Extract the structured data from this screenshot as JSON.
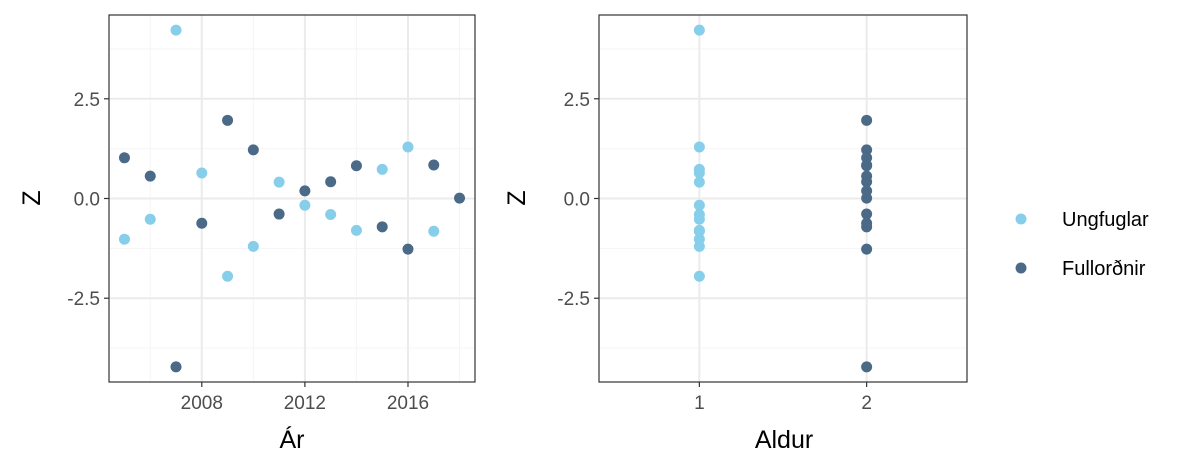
{
  "colors": {
    "series": [
      "#87ceeb",
      "#4a6a87"
    ],
    "grid_major": "#ebebeb",
    "grid_minor": "#f5f5f5",
    "panel_border": "#333333",
    "tick_text": "#4d4d4d"
  },
  "legend": {
    "position": "right",
    "items": [
      {
        "label": "Ungfuglar"
      },
      {
        "label": "Fullorðnir"
      }
    ]
  },
  "chart_data": [
    {
      "type": "scatter",
      "xlabel": "Ár",
      "ylabel": "Z",
      "xlim": [
        2004.4,
        2018.6
      ],
      "ylim": [
        -4.6,
        4.6
      ],
      "xticks": [
        {
          "value": 2008,
          "label": "2008"
        },
        {
          "value": 2012,
          "label": "2012"
        },
        {
          "value": 2016,
          "label": "2016"
        }
      ],
      "yticks": [
        {
          "value": -2.5,
          "label": "-2.5"
        },
        {
          "value": 0,
          "label": "0.0"
        },
        {
          "value": 2.5,
          "label": "2.5"
        }
      ],
      "x_minor": [
        2006,
        2010,
        2014,
        2018
      ],
      "y_minor": [
        -3.75,
        -1.25,
        1.25,
        3.75
      ],
      "grid": true,
      "series": [
        {
          "name": "Ungfuglar",
          "x": [
            2005,
            2006,
            2007,
            2008,
            2009,
            2010,
            2011,
            2012,
            2013,
            2014,
            2015,
            2016,
            2017
          ],
          "y": [
            -1.02,
            -0.52,
            4.22,
            0.64,
            -1.95,
            -1.2,
            0.41,
            -0.17,
            -0.4,
            -0.8,
            0.73,
            1.29,
            -0.82
          ]
        },
        {
          "name": "Fullorðnir",
          "x": [
            2005,
            2006,
            2007,
            2008,
            2009,
            2010,
            2011,
            2012,
            2013,
            2014,
            2015,
            2016,
            2017,
            2018
          ],
          "y": [
            1.02,
            0.56,
            -4.22,
            -0.62,
            1.96,
            1.22,
            -0.39,
            0.19,
            0.42,
            0.82,
            -0.71,
            -1.27,
            0.84,
            0.01
          ]
        }
      ]
    },
    {
      "type": "scatter",
      "xlabel": "Aldur",
      "ylabel": "Z",
      "xlim": [
        0.4,
        2.6
      ],
      "ylim": [
        -4.6,
        4.6
      ],
      "xticks": [
        {
          "value": 1,
          "label": "1"
        },
        {
          "value": 2,
          "label": "2"
        }
      ],
      "yticks": [
        {
          "value": -2.5,
          "label": "-2.5"
        },
        {
          "value": 0,
          "label": "0.0"
        },
        {
          "value": 2.5,
          "label": "2.5"
        }
      ],
      "x_minor": [],
      "y_minor": [
        -3.75,
        -1.25,
        1.25,
        3.75
      ],
      "grid": true,
      "series": [
        {
          "name": "Ungfuglar",
          "x": [
            1,
            1,
            1,
            1,
            1,
            1,
            1,
            1,
            1,
            1,
            1,
            1,
            1
          ],
          "y": [
            -1.02,
            -0.52,
            4.22,
            0.64,
            -1.95,
            -1.2,
            0.41,
            -0.17,
            -0.4,
            -0.8,
            0.73,
            1.29,
            -0.82
          ]
        },
        {
          "name": "Fullorðnir",
          "x": [
            2,
            2,
            2,
            2,
            2,
            2,
            2,
            2,
            2,
            2,
            2,
            2,
            2,
            2
          ],
          "y": [
            1.02,
            0.56,
            -4.22,
            -0.62,
            1.96,
            1.22,
            -0.39,
            0.19,
            0.42,
            0.82,
            -0.71,
            -1.27,
            0.84,
            0.01
          ]
        }
      ]
    }
  ]
}
